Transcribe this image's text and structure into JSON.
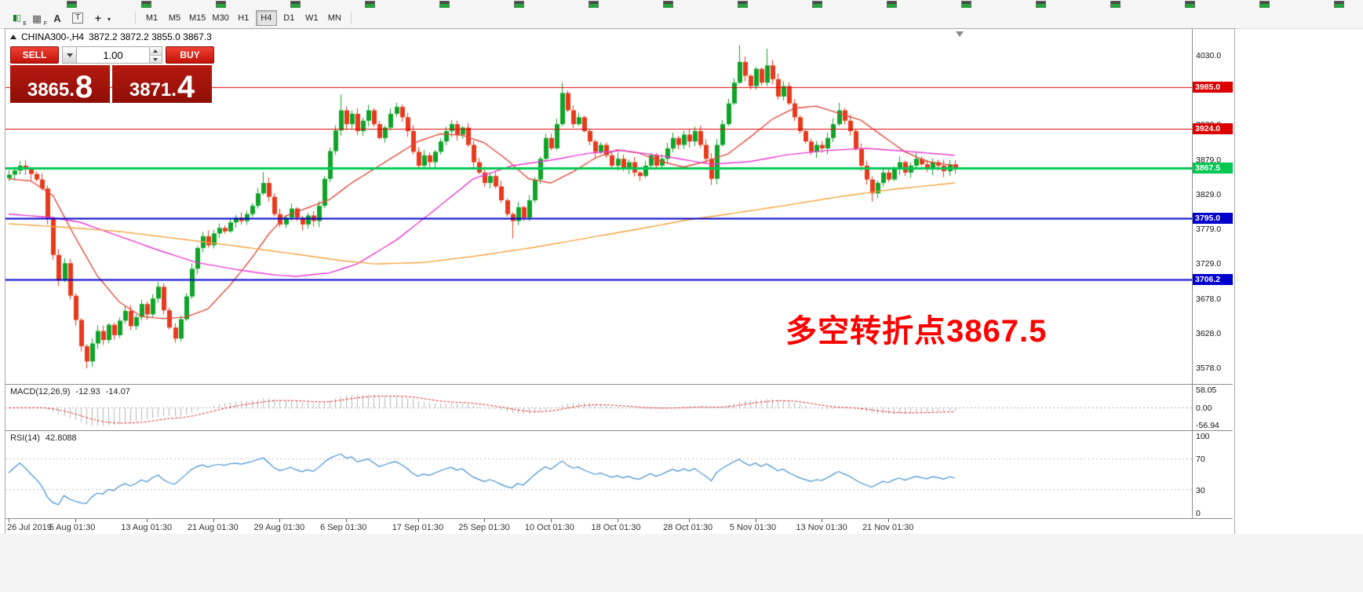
{
  "top_strip": {
    "icon_count": 18
  },
  "toolbar": {
    "icons": [
      {
        "name": "chart-style-icon",
        "glyph": "▮▯",
        "sub": "E"
      },
      {
        "name": "grid-icon",
        "glyph": "▦",
        "sub": "F"
      },
      {
        "name": "text-label-icon",
        "glyph": "A",
        "sub": ""
      },
      {
        "name": "text-box-icon",
        "glyph": "T",
        "sub": ""
      },
      {
        "name": "crosshair-icon",
        "glyph": "+",
        "sub": "▾"
      }
    ],
    "timeframes": [
      "M1",
      "M5",
      "M15",
      "M30",
      "H1",
      "H4",
      "D1",
      "W1",
      "MN"
    ],
    "active_timeframe": "H4"
  },
  "chart_header": {
    "symbol": "CHINA300-,H4",
    "ohlc": "3872.2 3872.2 3855.0 3867.3"
  },
  "trade_panel": {
    "sell_label": "SELL",
    "buy_label": "BUY",
    "volume": "1.00",
    "bid_main": "3865",
    "bid_big": "8",
    "ask_main": "3871",
    "ask_big": "4"
  },
  "annotation": {
    "text": "多空转折点3867.5",
    "color": "#ff0000"
  },
  "price_axis": {
    "plain_labels": [
      "4030.0",
      "3930.0",
      "3879.0",
      "3829.0",
      "3779.0",
      "3729.0",
      "3678.0",
      "3628.0",
      "3578.0"
    ],
    "badges": [
      {
        "value": "3985.0",
        "price": 3985.0,
        "color": "#dd0000",
        "lw": 1
      },
      {
        "value": "3924.0",
        "price": 3924.0,
        "color": "#dd0000",
        "lw": 1
      },
      {
        "value": "3867.5",
        "price": 3867.5,
        "color": "#00c853",
        "lw": 3
      },
      {
        "value": "3795.0",
        "price": 3795.0,
        "color": "#0000cd",
        "lw": 2
      },
      {
        "value": "3706.2",
        "price": 3706.2,
        "color": "#0000cd",
        "lw": 2
      }
    ]
  },
  "macd_panel": {
    "name": "MACD(12,26,9)",
    "value1": "-12.93",
    "value2": "-14.07",
    "axis": [
      "58.05",
      "0.00",
      "-56.94"
    ],
    "histogram_color": "#b6b6b6",
    "signal_color": "#dd2222"
  },
  "rsi_panel": {
    "name": "RSI(14)",
    "value": "42.8088",
    "axis": [
      "100",
      "70",
      "30",
      "0"
    ],
    "levels": [
      70,
      30
    ],
    "line_color": "#3f8fd2"
  },
  "time_axis": [
    {
      "i": 0,
      "label": "26 Jul 2019"
    },
    {
      "i": 12,
      "label": "5 Aug 01:30"
    },
    {
      "i": 25,
      "label": "13 Aug 01:30"
    },
    {
      "i": 37,
      "label": "21 Aug 01:30"
    },
    {
      "i": 49,
      "label": "29 Aug 01:30"
    },
    {
      "i": 61,
      "label": "6 Sep 01:30"
    },
    {
      "i": 74,
      "label": "17 Sep 01:30"
    },
    {
      "i": 86,
      "label": "25 Sep 01:30"
    },
    {
      "i": 98,
      "label": "10 Oct 01:30"
    },
    {
      "i": 110,
      "label": "18 Oct 01:30"
    },
    {
      "i": 123,
      "label": "28 Oct 01:30"
    },
    {
      "i": 135,
      "label": "5 Nov 01:30"
    },
    {
      "i": 147,
      "label": "13 Nov 01:30"
    },
    {
      "i": 159,
      "label": "21 Nov 01:30"
    }
  ],
  "chart_data": {
    "type": "candlestick",
    "symbol": "CHINA300-",
    "timeframe": "H4",
    "title": "CHINA300-,H4",
    "price_range": [
      3555.5,
      4068.5
    ],
    "up_color": "#0fa428",
    "down_color": "#e8391d",
    "first_open": 3853,
    "closes": [
      3858,
      3864,
      3871,
      3866,
      3859,
      3851,
      3838,
      3795,
      3742,
      3705,
      3730,
      3683,
      3648,
      3610,
      3588,
      3614,
      3632,
      3619,
      3641,
      3626,
      3647,
      3661,
      3639,
      3652,
      3671,
      3656,
      3679,
      3696,
      3662,
      3637,
      3621,
      3649,
      3682,
      3722,
      3752,
      3769,
      3756,
      3773,
      3781,
      3776,
      3789,
      3796,
      3791,
      3801,
      3813,
      3831,
      3846,
      3826,
      3801,
      3786,
      3796,
      3809,
      3796,
      3786,
      3799,
      3791,
      3813,
      3852,
      3892,
      3922,
      3951,
      3931,
      3946,
      3921,
      3936,
      3951,
      3931,
      3911,
      3926,
      3946,
      3956,
      3941,
      3921,
      3891,
      3871,
      3886,
      3876,
      3891,
      3906,
      3921,
      3931,
      3916,
      3926,
      3901,
      3876,
      3861,
      3846,
      3856,
      3841,
      3821,
      3801,
      3791,
      3811,
      3796,
      3821,
      3851,
      3881,
      3911,
      3896,
      3931,
      3976,
      3951,
      3931,
      3941,
      3921,
      3906,
      3891,
      3901,
      3886,
      3871,
      3881,
      3866,
      3876,
      3861,
      3856,
      3871,
      3886,
      3871,
      3881,
      3896,
      3911,
      3901,
      3916,
      3906,
      3921,
      3901,
      3881,
      3852,
      3901,
      3931,
      3961,
      3991,
      4021,
      4001,
      3986,
      4011,
      3991,
      4016,
      3996,
      3971,
      3986,
      3961,
      3941,
      3921,
      3906,
      3891,
      3901,
      3896,
      3911,
      3931,
      3951,
      3936,
      3921,
      3896,
      3871,
      3851,
      3831,
      3846,
      3861,
      3851,
      3866,
      3876,
      3861,
      3871,
      3881,
      3873,
      3866,
      3876,
      3871,
      3863,
      3873,
      3867.3
    ],
    "wick_overrides": {
      "7": {
        "low": 3786
      },
      "14": {
        "low": 3578
      },
      "46": {
        "high": 3862
      },
      "60": {
        "high": 3974
      },
      "91": {
        "low": 3766
      },
      "100": {
        "high": 3991
      },
      "127": {
        "low": 3843
      },
      "132": {
        "high": 4045
      },
      "137": {
        "high": 4040
      },
      "150": {
        "high": 3962
      },
      "156": {
        "low": 3819
      }
    },
    "ma_lines": [
      {
        "name": "ma-fast",
        "color": "#e14a3c",
        "points": [
          [
            0,
            3852
          ],
          [
            4,
            3849
          ],
          [
            8,
            3828
          ],
          [
            12,
            3768
          ],
          [
            16,
            3712
          ],
          [
            20,
            3674
          ],
          [
            24,
            3653
          ],
          [
            28,
            3650
          ],
          [
            32,
            3652
          ],
          [
            36,
            3664
          ],
          [
            40,
            3698
          ],
          [
            44,
            3738
          ],
          [
            47,
            3772
          ],
          [
            50,
            3798
          ],
          [
            54,
            3810
          ],
          [
            58,
            3822
          ],
          [
            62,
            3846
          ],
          [
            66,
            3866
          ],
          [
            70,
            3886
          ],
          [
            74,
            3906
          ],
          [
            78,
            3917
          ],
          [
            82,
            3915
          ],
          [
            86,
            3904
          ],
          [
            90,
            3880
          ],
          [
            94,
            3852
          ],
          [
            98,
            3846
          ],
          [
            102,
            3862
          ],
          [
            106,
            3882
          ],
          [
            110,
            3894
          ],
          [
            114,
            3889
          ],
          [
            118,
            3877
          ],
          [
            122,
            3869
          ],
          [
            126,
            3877
          ],
          [
            130,
            3888
          ],
          [
            134,
            3912
          ],
          [
            138,
            3938
          ],
          [
            142,
            3954
          ],
          [
            146,
            3957
          ],
          [
            150,
            3947
          ],
          [
            154,
            3937
          ],
          [
            158,
            3914
          ],
          [
            162,
            3891
          ],
          [
            166,
            3877
          ],
          [
            171,
            3871
          ]
        ]
      },
      {
        "name": "ma-medium",
        "color": "#e93ad0",
        "points": [
          [
            0,
            3801
          ],
          [
            8,
            3796
          ],
          [
            13,
            3789
          ],
          [
            20,
            3769
          ],
          [
            27,
            3749
          ],
          [
            34,
            3731
          ],
          [
            41,
            3721
          ],
          [
            48,
            3713
          ],
          [
            52,
            3711
          ],
          [
            58,
            3716
          ],
          [
            63,
            3729
          ],
          [
            70,
            3763
          ],
          [
            77,
            3807
          ],
          [
            84,
            3852
          ],
          [
            91,
            3871
          ],
          [
            98,
            3879
          ],
          [
            105,
            3889
          ],
          [
            111,
            3893
          ],
          [
            119,
            3884
          ],
          [
            127,
            3873
          ],
          [
            134,
            3877
          ],
          [
            141,
            3887
          ],
          [
            148,
            3893
          ],
          [
            155,
            3896
          ],
          [
            162,
            3892
          ],
          [
            171,
            3886
          ]
        ]
      },
      {
        "name": "ma-slow",
        "color": "#f2a33c",
        "points": [
          [
            0,
            3787
          ],
          [
            10,
            3782
          ],
          [
            20,
            3776
          ],
          [
            30,
            3766
          ],
          [
            40,
            3756
          ],
          [
            52,
            3743
          ],
          [
            60,
            3734
          ],
          [
            66,
            3729
          ],
          [
            75,
            3731
          ],
          [
            85,
            3741
          ],
          [
            95,
            3753
          ],
          [
            105,
            3767
          ],
          [
            115,
            3781
          ],
          [
            123,
            3793
          ],
          [
            130,
            3801
          ],
          [
            140,
            3813
          ],
          [
            150,
            3826
          ],
          [
            160,
            3837
          ],
          [
            171,
            3846
          ]
        ]
      }
    ]
  }
}
